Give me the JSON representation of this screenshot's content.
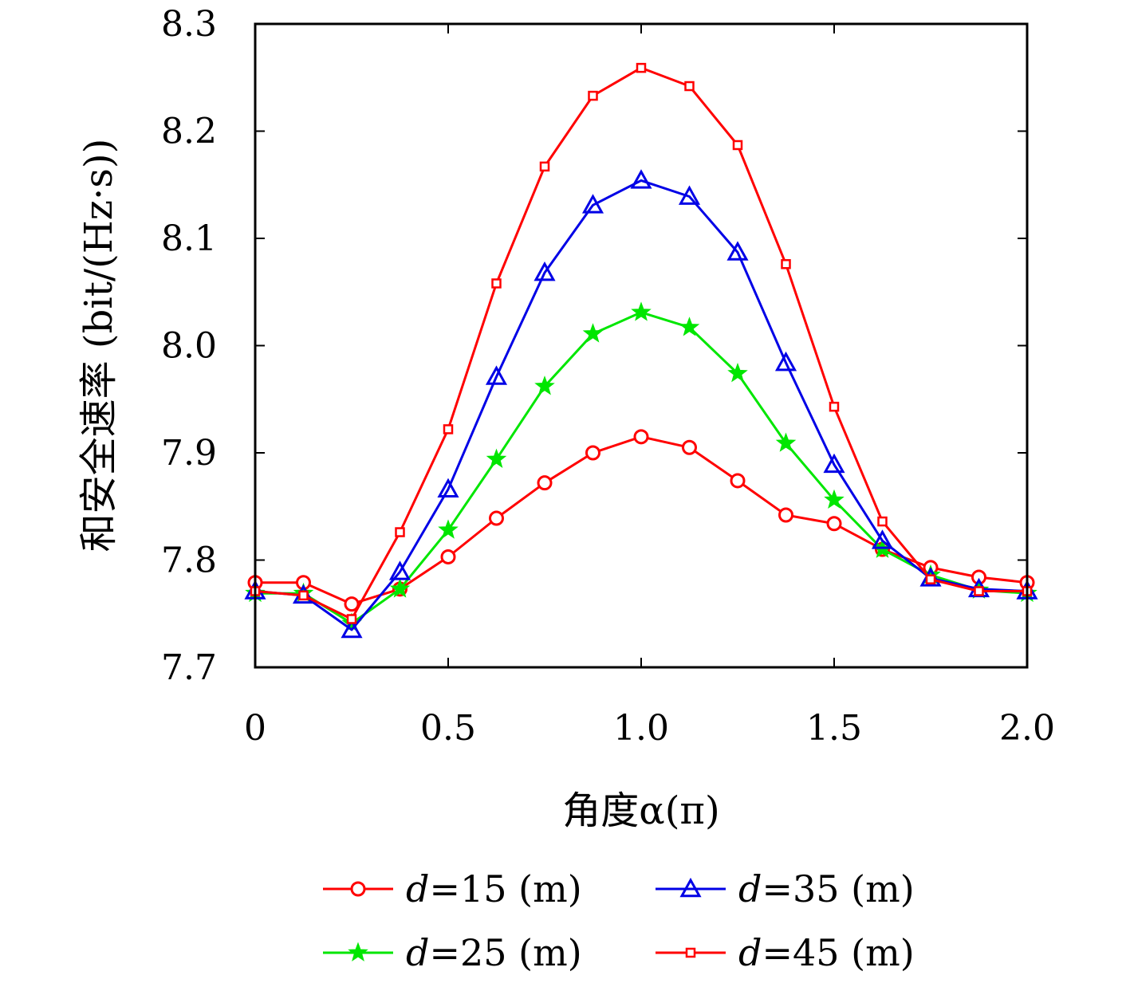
{
  "chart_data": {
    "type": "line",
    "xlabel": "角度α(π)",
    "ylabel": "和安全速率 (bit/(Hz·s))",
    "xlim": [
      0,
      2.0
    ],
    "ylim": [
      7.7,
      8.3
    ],
    "xticks": [
      0,
      0.5,
      1.0,
      1.5,
      2.0
    ],
    "xtick_labels": [
      "0",
      "0.5",
      "1.0",
      "1.5",
      "2.0"
    ],
    "yticks": [
      7.7,
      7.8,
      7.9,
      8.0,
      8.1,
      8.2,
      8.3
    ],
    "ytick_labels": [
      "7.7",
      "7.8",
      "7.9",
      "8.0",
      "8.1",
      "8.2",
      "8.3"
    ],
    "grid": false,
    "legend_position": "bottom",
    "x": [
      0,
      0.125,
      0.25,
      0.375,
      0.5,
      0.625,
      0.75,
      0.875,
      1.0,
      1.125,
      1.25,
      1.375,
      1.5,
      1.625,
      1.75,
      1.875,
      2.0
    ],
    "series": [
      {
        "name": "d=15 (m)",
        "legend_var": "d",
        "legend_rest": "=15 (m)",
        "color": "#ff0000",
        "marker": "circle",
        "values": [
          7.779,
          7.779,
          7.759,
          7.773,
          7.803,
          7.839,
          7.872,
          7.9,
          7.915,
          7.905,
          7.874,
          7.842,
          7.834,
          7.81,
          7.793,
          7.784,
          7.779
        ]
      },
      {
        "name": "d=25 (m)",
        "legend_var": "d",
        "legend_rest": "=25 (m)",
        "color": "#00e600",
        "marker": "star",
        "values": [
          7.769,
          7.769,
          7.741,
          7.773,
          7.828,
          7.894,
          7.962,
          8.011,
          8.031,
          8.017,
          7.974,
          7.909,
          7.856,
          7.81,
          7.786,
          7.772,
          7.769
        ]
      },
      {
        "name": "d=35 (m)",
        "legend_var": "d",
        "legend_rest": "=35 (m)",
        "color": "#0000e6",
        "marker": "triangle",
        "values": [
          7.771,
          7.767,
          7.735,
          7.789,
          7.866,
          7.971,
          8.068,
          8.131,
          8.154,
          8.139,
          8.087,
          7.984,
          7.889,
          7.818,
          7.783,
          7.773,
          7.771
        ]
      },
      {
        "name": "d=45 (m)",
        "legend_var": "d",
        "legend_rest": "=45 (m)",
        "color": "#ff0000",
        "marker": "square",
        "values": [
          7.771,
          7.767,
          7.745,
          7.826,
          7.922,
          8.058,
          8.167,
          8.233,
          8.259,
          8.242,
          8.187,
          8.076,
          7.943,
          7.836,
          7.782,
          7.771,
          7.771
        ]
      }
    ]
  }
}
